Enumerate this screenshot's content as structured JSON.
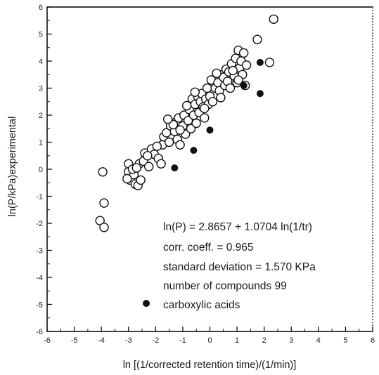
{
  "chart_data": {
    "type": "scatter",
    "title": "",
    "xlabel": "ln [(1/corrected retention time)/(1/min)]",
    "ylabel": "ln(P/kPa)experimental",
    "xlim": [
      -6,
      6
    ],
    "ylim": [
      -6,
      6
    ],
    "x_ticks": [
      -6,
      -5,
      -4,
      -3,
      -2,
      -1,
      0,
      1,
      2,
      3,
      4,
      5,
      6
    ],
    "y_ticks": [
      -6,
      -5,
      -4,
      -3,
      -2,
      -1,
      0,
      1,
      2,
      3,
      4,
      5,
      6
    ],
    "x_tick_labels": [
      "-6",
      "-5",
      "-4",
      "-3",
      "-2",
      "-1",
      "0",
      "1",
      "2",
      "3",
      "4",
      "5",
      "6"
    ],
    "y_tick_labels": [
      "-6",
      "-5",
      "-4",
      "-3",
      "-2",
      "-1",
      "0",
      "1",
      "2",
      "3",
      "4",
      "5",
      "6"
    ],
    "grid": false,
    "annotations": [
      "ln(P) = 2.8657 + 1.0704 ln(1/tr)",
      "corr. coeff. = 0.965",
      "standard deviation = 1.570 KPa",
      "number of compounds    99"
    ],
    "legend": {
      "label": "carboxylic acids",
      "marker": "filled-circle",
      "placement": "bottom-center"
    },
    "series": [
      {
        "marker": "open-circle",
        "points": [
          [
            -3.95,
            -0.1
          ],
          [
            -3.9,
            -1.25
          ],
          [
            -4.05,
            -1.9
          ],
          [
            -3.9,
            -2.15
          ],
          [
            -3.0,
            0.2
          ],
          [
            -3.0,
            -0.1
          ],
          [
            -2.95,
            -0.4
          ],
          [
            -2.75,
            -0.55
          ],
          [
            -2.65,
            -0.6
          ],
          [
            -2.55,
            -0.4
          ],
          [
            -2.8,
            -0.2
          ],
          [
            -2.6,
            0.2
          ],
          [
            -2.45,
            0.3
          ],
          [
            -2.4,
            0.6
          ],
          [
            -2.25,
            0.1
          ],
          [
            -2.15,
            0.75
          ],
          [
            -2.05,
            0.55
          ],
          [
            -1.9,
            0.4
          ],
          [
            -1.8,
            0.2
          ],
          [
            -1.75,
            0.9
          ],
          [
            -1.7,
            1.2
          ],
          [
            -1.6,
            1.35
          ],
          [
            -1.5,
            1.0
          ],
          [
            -1.45,
            1.6
          ],
          [
            -1.3,
            1.4
          ],
          [
            -1.25,
            1.75
          ],
          [
            -1.2,
            1.1
          ],
          [
            -1.15,
            1.9
          ],
          [
            -1.1,
            0.9
          ],
          [
            -1.0,
            1.6
          ],
          [
            -0.95,
            2.0
          ],
          [
            -0.9,
            1.3
          ],
          [
            -0.8,
            1.8
          ],
          [
            -0.75,
            2.2
          ],
          [
            -0.7,
            1.5
          ],
          [
            -0.65,
            2.6
          ],
          [
            -0.6,
            2.0
          ],
          [
            -0.55,
            2.4
          ],
          [
            -0.5,
            1.7
          ],
          [
            -0.45,
            2.7
          ],
          [
            -0.4,
            2.1
          ],
          [
            -0.35,
            2.5
          ],
          [
            -0.3,
            2.8
          ],
          [
            -0.25,
            2.3
          ],
          [
            -0.2,
            1.9
          ],
          [
            -0.15,
            2.6
          ],
          [
            -0.1,
            3.0
          ],
          [
            -0.05,
            2.4
          ],
          [
            0.0,
            2.7
          ],
          [
            0.05,
            3.3
          ],
          [
            0.1,
            2.5
          ],
          [
            0.2,
            3.0
          ],
          [
            0.3,
            3.2
          ],
          [
            0.35,
            2.9
          ],
          [
            0.45,
            3.5
          ],
          [
            0.5,
            3.4
          ],
          [
            0.55,
            3.1
          ],
          [
            0.6,
            3.7
          ],
          [
            0.65,
            3.25
          ],
          [
            0.7,
            3.6
          ],
          [
            0.75,
            3.0
          ],
          [
            0.8,
            3.9
          ],
          [
            0.9,
            3.45
          ],
          [
            0.95,
            4.1
          ],
          [
            1.0,
            3.2
          ],
          [
            1.05,
            4.4
          ],
          [
            1.1,
            3.75
          ],
          [
            1.15,
            4.0
          ],
          [
            1.2,
            3.5
          ],
          [
            1.25,
            4.3
          ],
          [
            1.3,
            3.1
          ],
          [
            1.35,
            3.85
          ],
          [
            1.05,
            3.3
          ],
          [
            0.85,
            3.65
          ],
          [
            0.25,
            3.55
          ],
          [
            -0.55,
            2.85
          ],
          [
            -0.85,
            2.35
          ],
          [
            -1.35,
            1.65
          ],
          [
            -1.95,
            0.85
          ],
          [
            -2.3,
            0.5
          ],
          [
            -2.85,
            0.0
          ],
          [
            -1.55,
            1.85
          ],
          [
            -0.2,
            2.25
          ],
          [
            0.4,
            2.65
          ],
          [
            1.75,
            4.8
          ],
          [
            2.2,
            3.95
          ],
          [
            2.35,
            5.55
          ],
          [
            -3.05,
            -0.35
          ],
          [
            -2.7,
            0.05
          ],
          [
            -1.1,
            1.45
          ]
        ]
      },
      {
        "name": "carboxylic acids",
        "marker": "filled-circle",
        "points": [
          [
            -1.3,
            0.05
          ],
          [
            -0.6,
            0.7
          ],
          [
            0.0,
            1.45
          ],
          [
            1.25,
            3.1
          ],
          [
            1.85,
            3.95
          ],
          [
            1.85,
            2.8
          ]
        ]
      }
    ]
  }
}
